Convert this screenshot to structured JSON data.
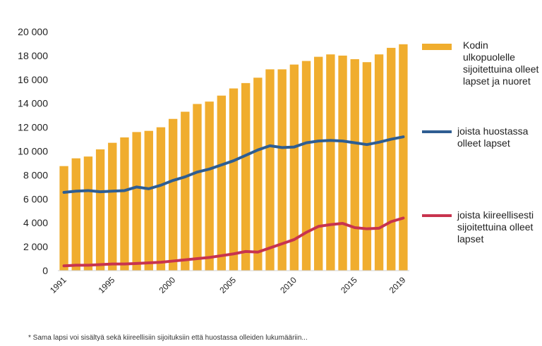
{
  "chart_data": {
    "type": "bar",
    "title": "",
    "xlabel": "",
    "ylabel": "",
    "ylim": [
      0,
      20000
    ],
    "yticks": [
      0,
      2000,
      4000,
      6000,
      8000,
      10000,
      12000,
      14000,
      16000,
      18000,
      20000
    ],
    "ytick_labels": [
      "0",
      "2 000",
      "4 000",
      "6 000",
      "8 000",
      "10 000",
      "12 000",
      "14 000",
      "16 000",
      "18 000",
      "20 000"
    ],
    "x": [
      1991,
      1992,
      1993,
      1994,
      1995,
      1996,
      1997,
      1998,
      1999,
      2000,
      2001,
      2002,
      2003,
      2004,
      2005,
      2006,
      2007,
      2008,
      2009,
      2010,
      2011,
      2012,
      2013,
      2014,
      2015,
      2016,
      2017,
      2018,
      2019
    ],
    "xtick_labels": [
      "1991",
      "1995",
      "2000",
      "2005",
      "2010",
      "2015",
      "2019"
    ],
    "grid": false,
    "legend_position": "right",
    "series": [
      {
        "name": "Kodin ulkopuolelle sijoitettuina olleet lapset  ja nuoret",
        "type": "bar",
        "color": "#f0ad2e",
        "values": [
          8750,
          9400,
          9550,
          10150,
          10700,
          11150,
          11600,
          11700,
          12000,
          12700,
          13300,
          13950,
          14150,
          14650,
          15250,
          15700,
          16150,
          16850,
          16850,
          17250,
          17550,
          17900,
          18100,
          18000,
          17700,
          17450,
          18100,
          18650,
          18950
        ]
      },
      {
        "name": "joista huostassa olleet lapset",
        "type": "line",
        "color": "#2e5d92",
        "values": [
          6550,
          6650,
          6700,
          6600,
          6650,
          6700,
          7000,
          6850,
          7150,
          7550,
          7850,
          8250,
          8500,
          8850,
          9200,
          9650,
          10100,
          10450,
          10300,
          10350,
          10700,
          10850,
          10900,
          10850,
          10700,
          10550,
          10750,
          11000,
          11200
        ]
      },
      {
        "name": "joista kiireellisesti sijoitettuina olleet lapset",
        "type": "line",
        "color": "#c8334e",
        "values": [
          400,
          450,
          450,
          500,
          550,
          550,
          600,
          650,
          700,
          800,
          900,
          1000,
          1100,
          1250,
          1400,
          1600,
          1550,
          1900,
          2250,
          2600,
          3200,
          3700,
          3850,
          3950,
          3600,
          3500,
          3550,
          4100,
          4400
        ]
      }
    ]
  },
  "footnote": "* Sama lapsi voi sisältyä sekä kiireellisiin sijoituksiin että huostassa olleiden lukumääriin..."
}
